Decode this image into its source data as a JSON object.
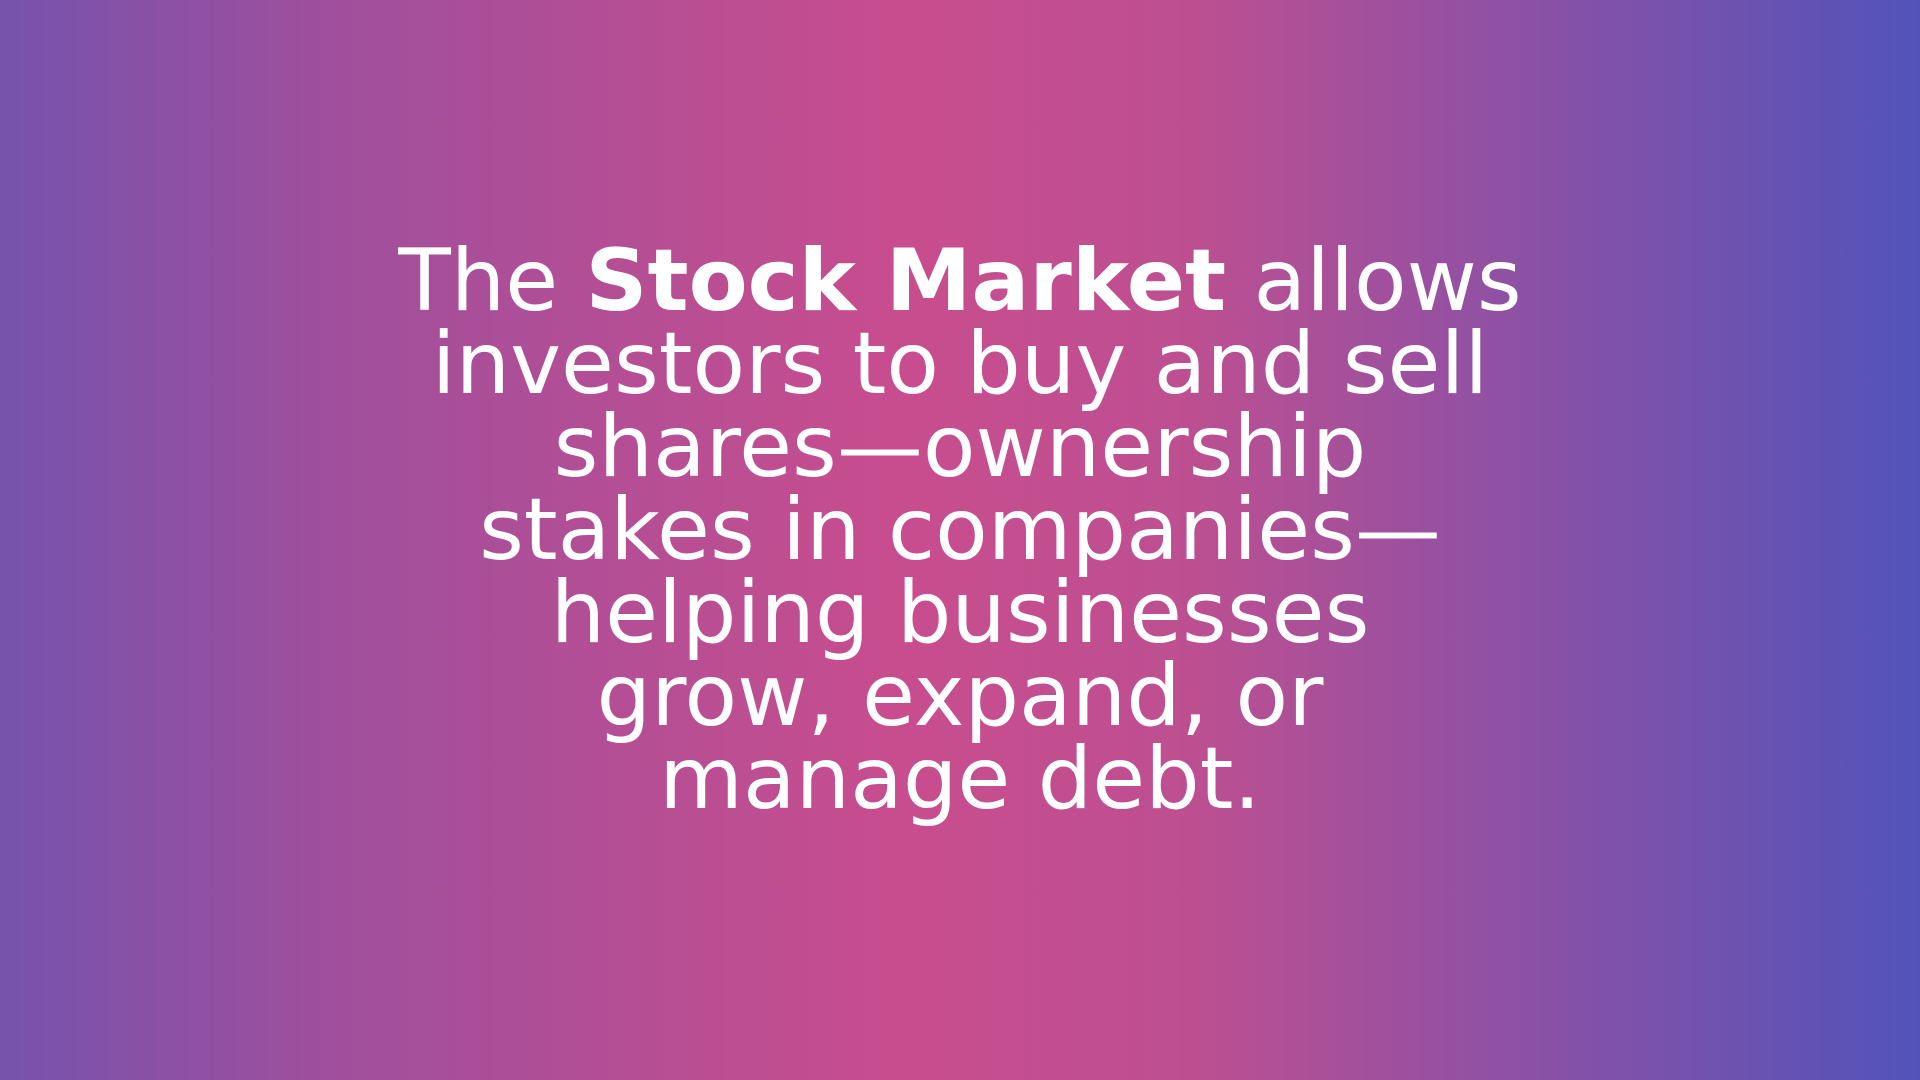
{
  "slide": {
    "line1": {
      "prefix": "The ",
      "emphasis": "Stock Market",
      "suffix": " allows"
    },
    "line2": "investors to buy and sell",
    "line3": "shares—ownership",
    "line4": "stakes in companies—",
    "line5": "helping businesses",
    "line6": "grow, expand, or",
    "line7": "manage debt."
  },
  "colors": {
    "gradient": [
      "#7653ad",
      "#a14f9c",
      "#c84d8e",
      "#bd4f91",
      "#8a51a6",
      "#5253ba"
    ],
    "text": "#ffffff"
  }
}
